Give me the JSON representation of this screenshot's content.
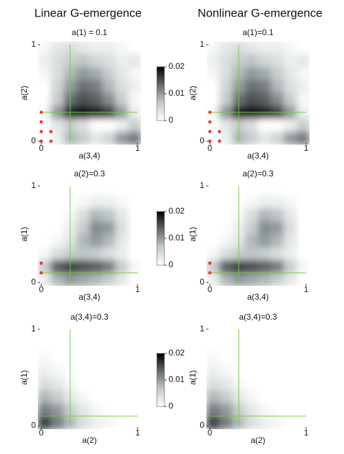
{
  "column_titles": [
    "Linear G-emergence",
    "Nonlinear G-emergence"
  ],
  "chart_data": [
    {
      "type": "heatmap",
      "title": "a(1) = 0.1",
      "xlabel": "a(3,4)",
      "ylabel": "a(2)",
      "xlim": [
        0,
        1
      ],
      "ylim": [
        0,
        1
      ],
      "xticks": [
        0,
        1
      ],
      "yticks": [
        0,
        1
      ],
      "zlim": [
        0,
        0.02
      ],
      "zticks": [
        0,
        0.01,
        0.02
      ],
      "colorbar": true,
      "crosshair": {
        "x": 0.3,
        "y": 0.3
      },
      "crosshair_color": "#7ac943",
      "points": {
        "x": [
          0,
          0,
          0,
          0,
          0.1,
          0.1
        ],
        "y": [
          0,
          0.1,
          0.2,
          0.3,
          0,
          0.1
        ],
        "color": "#e0403a"
      },
      "values": [
        [
          0.001,
          0.003,
          0.004,
          0.003,
          0.002,
          0.002,
          0.001,
          0.0
        ],
        [
          0.002,
          0.004,
          0.006,
          0.007,
          0.005,
          0.004,
          0.002,
          0.003
        ],
        [
          0.001,
          0.004,
          0.008,
          0.01,
          0.009,
          0.006,
          0.003,
          0.001
        ],
        [
          0.0,
          0.005,
          0.01,
          0.013,
          0.012,
          0.008,
          0.004,
          0.002
        ],
        [
          0.0,
          0.006,
          0.013,
          0.015,
          0.014,
          0.011,
          0.006,
          0.001
        ],
        [
          0.001,
          0.01,
          0.018,
          0.019,
          0.018,
          0.016,
          0.01,
          0.002
        ],
        [
          0.0,
          0.003,
          0.006,
          0.004,
          0.0,
          0.0,
          0.002,
          0.006
        ],
        [
          0.0,
          0.002,
          0.008,
          0.006,
          0.003,
          0.005,
          0.01,
          0.012
        ]
      ]
    },
    {
      "type": "heatmap",
      "title": "a(1)=0.1",
      "xlabel": "a(3,4)",
      "ylabel": "a(2)",
      "xlim": [
        0,
        1
      ],
      "ylim": [
        0,
        1
      ],
      "xticks": [
        0,
        1
      ],
      "yticks": [
        0,
        1
      ],
      "zlim": [
        0,
        0.02
      ],
      "colorbar": false,
      "crosshair": {
        "x": 0.3,
        "y": 0.3
      },
      "crosshair_color": "#7ac943",
      "points": {
        "x": [
          0,
          0,
          0,
          0,
          0.1,
          0.1
        ],
        "y": [
          0,
          0.1,
          0.2,
          0.3,
          0,
          0.1
        ],
        "color": "#e0403a"
      },
      "values": [
        [
          0.001,
          0.003,
          0.004,
          0.003,
          0.002,
          0.002,
          0.001,
          0.0
        ],
        [
          0.002,
          0.004,
          0.006,
          0.007,
          0.005,
          0.004,
          0.002,
          0.003
        ],
        [
          0.001,
          0.004,
          0.008,
          0.01,
          0.009,
          0.006,
          0.003,
          0.001
        ],
        [
          0.0,
          0.005,
          0.01,
          0.013,
          0.012,
          0.008,
          0.004,
          0.002
        ],
        [
          0.0,
          0.006,
          0.013,
          0.015,
          0.014,
          0.011,
          0.006,
          0.001
        ],
        [
          0.001,
          0.01,
          0.018,
          0.019,
          0.018,
          0.016,
          0.01,
          0.002
        ],
        [
          0.0,
          0.003,
          0.006,
          0.004,
          0.0,
          0.0,
          0.002,
          0.006
        ],
        [
          0.0,
          0.002,
          0.008,
          0.006,
          0.003,
          0.005,
          0.01,
          0.012
        ]
      ]
    },
    {
      "type": "heatmap",
      "title": "a(2)=0.3",
      "xlabel": "a(3,4)",
      "ylabel": "a(1)",
      "xlim": [
        0,
        1
      ],
      "ylim": [
        0,
        1
      ],
      "xticks": [
        0,
        1
      ],
      "yticks": [
        0,
        1
      ],
      "zlim": [
        0,
        0.02
      ],
      "zticks": [
        0,
        0.01,
        0.02
      ],
      "colorbar": true,
      "crosshair": {
        "x": 0.3,
        "y": 0.1
      },
      "crosshair_color": "#7ac943",
      "points": {
        "x": [
          0,
          0
        ],
        "y": [
          0.1,
          0.2
        ],
        "color": "#e0403a"
      },
      "values": [
        [
          0,
          0,
          0,
          0,
          0,
          0,
          0,
          0
        ],
        [
          0,
          0,
          0,
          0.001,
          0.002,
          0.002,
          0.001,
          0
        ],
        [
          0,
          0,
          0.001,
          0.004,
          0.008,
          0.007,
          0.003,
          0
        ],
        [
          0,
          0,
          0.002,
          0.006,
          0.011,
          0.01,
          0.004,
          0
        ],
        [
          0,
          0.001,
          0.003,
          0.008,
          0.01,
          0.008,
          0.003,
          0
        ],
        [
          0.001,
          0.004,
          0.006,
          0.007,
          0.006,
          0.004,
          0.002,
          0
        ],
        [
          0.006,
          0.014,
          0.016,
          0.015,
          0.014,
          0.012,
          0.006,
          0.001
        ],
        [
          0.002,
          0.008,
          0.01,
          0.009,
          0.008,
          0.006,
          0.003,
          0
        ]
      ]
    },
    {
      "type": "heatmap",
      "title": "a(2)=0.3",
      "xlabel": "a(3,4)",
      "ylabel": "a(1)",
      "xlim": [
        0,
        1
      ],
      "ylim": [
        0,
        1
      ],
      "xticks": [
        0,
        1
      ],
      "yticks": [
        0,
        1
      ],
      "zlim": [
        0,
        0.02
      ],
      "colorbar": false,
      "crosshair": {
        "x": 0.3,
        "y": 0.1
      },
      "crosshair_color": "#7ac943",
      "points": {
        "x": [
          0,
          0
        ],
        "y": [
          0.1,
          0.2
        ],
        "color": "#e0403a"
      },
      "values": [
        [
          0,
          0,
          0,
          0,
          0,
          0,
          0,
          0
        ],
        [
          0,
          0,
          0,
          0.001,
          0.002,
          0.002,
          0.001,
          0
        ],
        [
          0,
          0,
          0.001,
          0.004,
          0.008,
          0.007,
          0.003,
          0
        ],
        [
          0,
          0,
          0.002,
          0.006,
          0.011,
          0.01,
          0.004,
          0
        ],
        [
          0,
          0.001,
          0.003,
          0.008,
          0.01,
          0.008,
          0.003,
          0
        ],
        [
          0.001,
          0.004,
          0.006,
          0.007,
          0.006,
          0.004,
          0.002,
          0
        ],
        [
          0.006,
          0.014,
          0.016,
          0.015,
          0.014,
          0.012,
          0.006,
          0.001
        ],
        [
          0.002,
          0.008,
          0.01,
          0.009,
          0.008,
          0.006,
          0.003,
          0
        ]
      ]
    },
    {
      "type": "heatmap",
      "title": "a(3,4)=0.3",
      "xlabel": "a(2)",
      "ylabel": "a(1)",
      "xlim": [
        0,
        1
      ],
      "ylim": [
        0,
        1
      ],
      "xticks": [
        0,
        1
      ],
      "yticks": [
        0,
        1
      ],
      "zlim": [
        0,
        0.02
      ],
      "zticks": [
        0,
        0.01,
        0.02
      ],
      "colorbar": true,
      "crosshair": {
        "x": 0.3,
        "y": 0.1
      },
      "crosshair_color": "#7ac943",
      "values": [
        [
          0,
          0,
          0,
          0,
          0,
          0,
          0,
          0
        ],
        [
          0,
          0,
          0,
          0,
          0,
          0,
          0,
          0
        ],
        [
          0.001,
          0,
          0,
          0,
          0,
          0,
          0,
          0
        ],
        [
          0.002,
          0.001,
          0,
          0,
          0,
          0,
          0,
          0
        ],
        [
          0.004,
          0.003,
          0.001,
          0,
          0,
          0,
          0,
          0
        ],
        [
          0.008,
          0.006,
          0.003,
          0.001,
          0,
          0,
          0,
          0
        ],
        [
          0.012,
          0.01,
          0.006,
          0.003,
          0.001,
          0,
          0,
          0
        ],
        [
          0.016,
          0.012,
          0.008,
          0.004,
          0.002,
          0.001,
          0,
          0
        ]
      ]
    },
    {
      "type": "heatmap",
      "title": "a(3,4)=0.3",
      "xlabel": "a(2)",
      "ylabel": "a(1)",
      "xlim": [
        0,
        1
      ],
      "ylim": [
        0,
        1
      ],
      "xticks": [
        0,
        1
      ],
      "yticks": [
        0,
        1
      ],
      "zlim": [
        0,
        0.02
      ],
      "colorbar": false,
      "crosshair": {
        "x": 0.3,
        "y": 0.1
      },
      "crosshair_color": "#7ac943",
      "values": [
        [
          0,
          0,
          0,
          0,
          0,
          0,
          0,
          0
        ],
        [
          0,
          0,
          0,
          0,
          0,
          0,
          0,
          0
        ],
        [
          0.001,
          0,
          0,
          0,
          0,
          0,
          0,
          0
        ],
        [
          0.002,
          0.001,
          0,
          0,
          0,
          0,
          0,
          0
        ],
        [
          0.004,
          0.003,
          0.001,
          0,
          0,
          0,
          0,
          0
        ],
        [
          0.008,
          0.006,
          0.003,
          0.001,
          0,
          0,
          0,
          0
        ],
        [
          0.012,
          0.01,
          0.006,
          0.003,
          0.001,
          0,
          0,
          0
        ],
        [
          0.016,
          0.012,
          0.008,
          0.004,
          0.002,
          0.001,
          0,
          0
        ]
      ]
    }
  ]
}
